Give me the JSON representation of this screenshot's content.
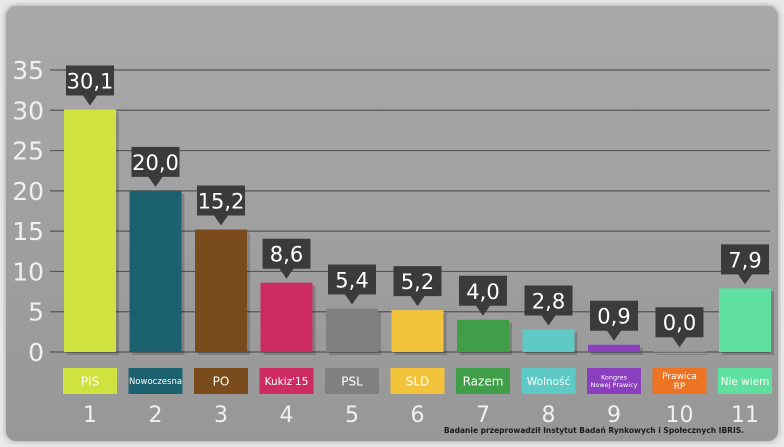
{
  "chart_data": {
    "type": "bar",
    "categories": [
      "PIS",
      "Nowoczesna",
      "PO",
      "Kukiz'15",
      "PSL",
      "SLD",
      "Razem",
      "Wolność",
      "Kongres Nowej Prawicy",
      "Prawica RP",
      "Nie wiem"
    ],
    "category_numbers": [
      "1",
      "2",
      "3",
      "4",
      "5",
      "6",
      "7",
      "8",
      "9",
      "10",
      "11"
    ],
    "values": [
      30.1,
      20.0,
      15.2,
      8.6,
      5.4,
      5.2,
      4.0,
      2.8,
      0.9,
      0.0,
      7.9
    ],
    "value_labels": [
      "30,1",
      "20,0",
      "15,2",
      "8,6",
      "5,4",
      "5,2",
      "4,0",
      "2,8",
      "0,9",
      "0,0",
      "7,9"
    ],
    "label_lines": [
      [
        "PIS"
      ],
      [
        "Nowoczesna"
      ],
      [
        "PO"
      ],
      [
        "Kukiz'15"
      ],
      [
        "PSL"
      ],
      [
        "SLD"
      ],
      [
        "Razem"
      ],
      [
        "Wolność"
      ],
      [
        "Kongres",
        "Nowej Prawicy"
      ],
      [
        "Prawica",
        "RP"
      ],
      [
        "Nie wiem"
      ]
    ],
    "colors": [
      "#cfe23f",
      "#1c6170",
      "#7a4c1c",
      "#cc2c62",
      "#808080",
      "#f4c33c",
      "#3f9e47",
      "#5fc9c5",
      "#8b3fbe",
      "#ee7424",
      "#5fe0a0"
    ],
    "label_bg_colors": [
      "#cfe23f",
      "#1c6170",
      "#7a4c1c",
      "#cc2c62",
      "#808080",
      "#f4c33c",
      "#3f9e47",
      "#5fc9c5",
      "#8b3fbe",
      "#ee7424",
      "#5fe0a0"
    ],
    "title": "",
    "xlabel": "",
    "ylabel": "",
    "y_ticks": [
      "0",
      "5",
      "10",
      "15",
      "20",
      "25",
      "30",
      "35"
    ],
    "ylim": [
      0,
      35
    ],
    "grid": true,
    "legend": "none"
  },
  "footnote": "Badanie przeprowadził Instytut Badań Rynkowych i Społecznych IBRIS."
}
